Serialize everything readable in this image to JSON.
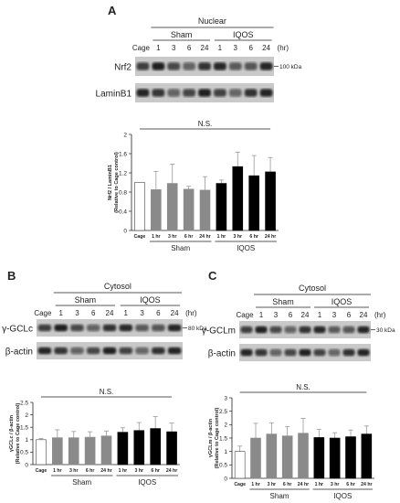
{
  "panels": {
    "A": {
      "letter": "A",
      "blot": {
        "fraction": "Nuclear",
        "lane_prefix": "Cage",
        "times": [
          "1",
          "3",
          "6",
          "24"
        ],
        "unit": "(hr)",
        "groups": [
          "Sham",
          "IQOS"
        ],
        "rows": [
          {
            "protein": "Nrf2",
            "marker": "100 kDa"
          },
          {
            "protein": "LaminB1",
            "marker": ""
          }
        ]
      },
      "stat": "N.S."
    },
    "B": {
      "letter": "B",
      "blot": {
        "fraction": "Cytosol",
        "lane_prefix": "Cage",
        "times": [
          "1",
          "3",
          "6",
          "24"
        ],
        "unit": "(hr)",
        "groups": [
          "Sham",
          "IQOS"
        ],
        "rows": [
          {
            "protein": "γ-GCLc",
            "marker": "80 kDa"
          },
          {
            "protein": "β-actin",
            "marker": ""
          }
        ]
      },
      "stat": "N.S."
    },
    "C": {
      "letter": "C",
      "blot": {
        "fraction": "Cytosol",
        "lane_prefix": "Cage",
        "times": [
          "1",
          "3",
          "6",
          "24"
        ],
        "unit": "(hr)",
        "groups": [
          "Sham",
          "IQOS"
        ],
        "rows": [
          {
            "protein": "γ-GCLm",
            "marker": "30 kDa"
          },
          {
            "protein": "β-actin",
            "marker": ""
          }
        ]
      },
      "stat": "N.S."
    }
  },
  "colors": {
    "cage": "#ffffff",
    "sham": "#8a8a8a",
    "iqos": "#000000",
    "error": "#999999"
  },
  "chart_data": [
    {
      "type": "bar",
      "panel": "A",
      "categories": [
        "Cage",
        "1 hr",
        "3 hr",
        "6 hr",
        "24 hr",
        "1 hr",
        "3 hr",
        "6 hr",
        "24 hr"
      ],
      "groups": [
        {
          "label": "",
          "range": [
            0,
            0
          ]
        },
        {
          "label": "Sham",
          "range": [
            1,
            4
          ]
        },
        {
          "label": "IQOS",
          "range": [
            5,
            8
          ]
        }
      ],
      "values": [
        1.0,
        0.85,
        0.98,
        0.86,
        0.84,
        0.98,
        1.33,
        1.14,
        1.22
      ],
      "errors": [
        0,
        0.38,
        0.4,
        0.06,
        0.28,
        0.07,
        0.3,
        0.42,
        0.3
      ],
      "ylabel": "Nrf2 / LaminB1\n(Relative to Cage control)",
      "yticks": [
        "0",
        "0.4",
        "0.8",
        "1.2",
        "1.6",
        "2"
      ],
      "ylim": [
        0,
        2
      ],
      "annotation": "N.S."
    },
    {
      "type": "bar",
      "panel": "B",
      "categories": [
        "Cage",
        "1 hr",
        "3 hr",
        "6 hr",
        "24 hr",
        "1 hr",
        "3 hr",
        "6 hr",
        "24 hr"
      ],
      "groups": [
        {
          "label": "",
          "range": [
            0,
            0
          ]
        },
        {
          "label": "Sham",
          "range": [
            1,
            4
          ]
        },
        {
          "label": "IQOS",
          "range": [
            5,
            8
          ]
        }
      ],
      "values": [
        1.0,
        1.08,
        1.08,
        1.1,
        1.15,
        1.3,
        1.37,
        1.45,
        1.32
      ],
      "errors": [
        0.05,
        0.32,
        0.25,
        0.22,
        0.2,
        0.18,
        0.32,
        0.48,
        0.35
      ],
      "ylabel": "γGCLc / β-actin\n(Relative to Cage control)",
      "yticks": [
        "0",
        "0.5",
        "1",
        "1.5",
        "2",
        "2.5"
      ],
      "ylim": [
        0,
        2.5
      ],
      "annotation": "N.S."
    },
    {
      "type": "bar",
      "panel": "C",
      "categories": [
        "Cage",
        "1 hr",
        "3 hr",
        "6 hr",
        "24 hr",
        "1 hr",
        "3 hr",
        "6 hr",
        "24 hr"
      ],
      "groups": [
        {
          "label": "",
          "range": [
            0,
            0
          ]
        },
        {
          "label": "Sham",
          "range": [
            1,
            4
          ]
        },
        {
          "label": "IQOS",
          "range": [
            5,
            8
          ]
        }
      ],
      "values": [
        1.0,
        1.5,
        1.65,
        1.58,
        1.68,
        1.52,
        1.5,
        1.55,
        1.65
      ],
      "errors": [
        0.2,
        0.55,
        0.42,
        0.35,
        0.55,
        0.3,
        0.2,
        0.25,
        0.3
      ],
      "ylabel": "γGCLm / β-actin\n(Relative to Cage control)",
      "yticks": [
        "0",
        "0.5",
        "1",
        "1.5",
        "2",
        "2.5",
        "3"
      ],
      "ylim": [
        0,
        3
      ],
      "annotation": "N.S."
    }
  ]
}
